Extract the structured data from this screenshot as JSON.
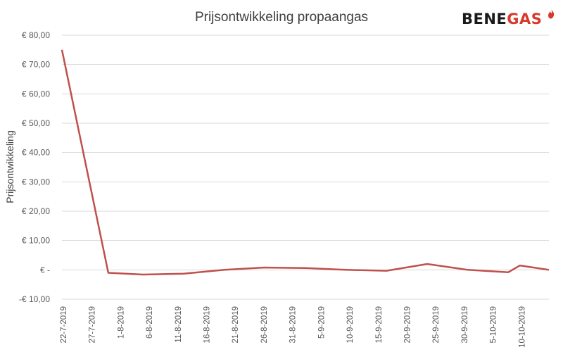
{
  "logo": {
    "part1": "BENE",
    "part2": "GAS"
  },
  "chart_data": {
    "type": "line",
    "title": "Prijsontwikkeling propaangas",
    "xlabel": "",
    "ylabel": "Prijsontwikkeling",
    "ylim": [
      -10,
      80
    ],
    "y_ticks": [
      -10,
      0,
      10,
      20,
      30,
      40,
      50,
      60,
      70,
      80
    ],
    "y_tick_labels": [
      "-€ 10,00",
      "€ -",
      "€ 10,00",
      "€ 20,00",
      "€ 30,00",
      "€ 40,00",
      "€ 50,00",
      "€ 60,00",
      "€ 70,00",
      "€ 80,00"
    ],
    "x_tick_labels": [
      "22-7-2019",
      "27-7-2019",
      "1-8-2019",
      "6-8-2019",
      "11-8-2019",
      "16-8-2019",
      "21-8-2019",
      "26-8-2019",
      "31-8-2019",
      "5-9-2019",
      "10-9-2019",
      "15-9-2019",
      "20-9-2019",
      "25-9-2019",
      "30-9-2019",
      "5-10-2019",
      "10-10-2019"
    ],
    "grid": true,
    "legend": "none",
    "series": [
      {
        "color": "#c0504d",
        "points": [
          {
            "x": "2019-07-22",
            "y": 75.0
          },
          {
            "x": "2019-07-30",
            "y": -1.0
          },
          {
            "x": "2019-08-05",
            "y": -1.6
          },
          {
            "x": "2019-08-12",
            "y": -1.3
          },
          {
            "x": "2019-08-19",
            "y": 0.0
          },
          {
            "x": "2019-08-26",
            "y": 0.8
          },
          {
            "x": "2019-09-02",
            "y": 0.6
          },
          {
            "x": "2019-09-09",
            "y": 0.0
          },
          {
            "x": "2019-09-16",
            "y": -0.3
          },
          {
            "x": "2019-09-23",
            "y": 2.0
          },
          {
            "x": "2019-09-30",
            "y": 0.0
          },
          {
            "x": "2019-10-07",
            "y": -0.8
          },
          {
            "x": "2019-10-09",
            "y": 1.5
          },
          {
            "x": "2019-10-14",
            "y": 0.0
          }
        ]
      }
    ]
  }
}
